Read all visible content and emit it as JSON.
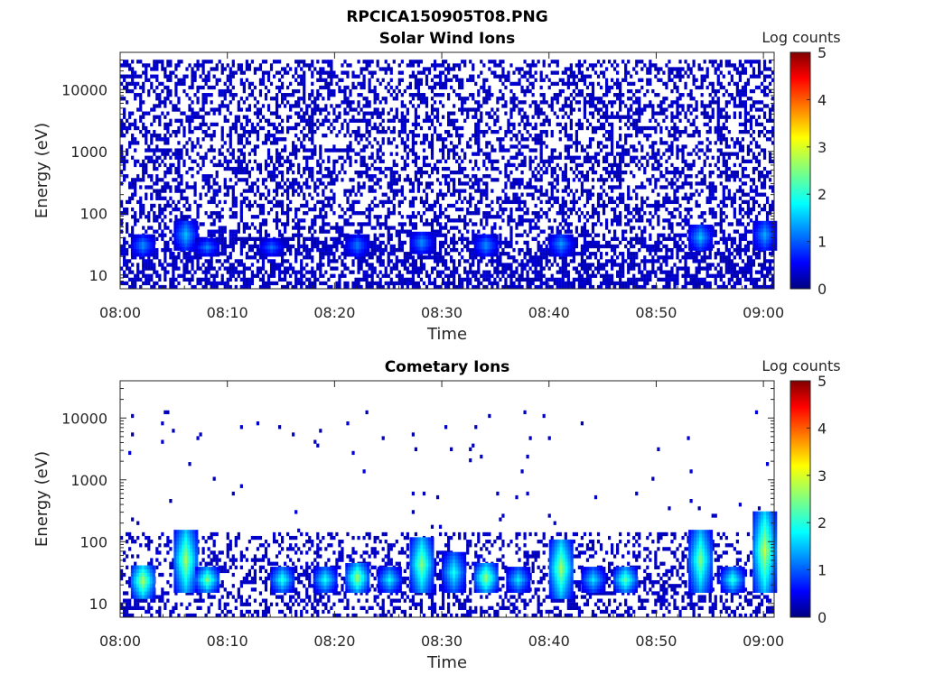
{
  "figure": {
    "title": "RPCICA150905T08.PNG"
  },
  "chart_data": [
    {
      "type": "heatmap",
      "title": "Solar Wind Ions",
      "xlabel": "Time",
      "ylabel": "Energy (eV)",
      "x_ticks": [
        "08:00",
        "08:10",
        "08:20",
        "08:30",
        "08:40",
        "08:50",
        "09:00"
      ],
      "x_range": [
        "08:00",
        "09:01"
      ],
      "y_scale": "log",
      "y_ticks": [
        "10",
        "100",
        "1000",
        "10000"
      ],
      "y_range": [
        6,
        40000
      ],
      "colorbar": {
        "label": "Log counts",
        "ticks": [
          "0",
          "1",
          "2",
          "3",
          "4",
          "5"
        ],
        "range": [
          0,
          5
        ],
        "colormap": "jet"
      },
      "background_noise": {
        "energy_range_eV": [
          6,
          30000
        ],
        "log_counts": 0.2,
        "density": "high"
      },
      "features": [
        {
          "time": "08:02",
          "energy_eV": [
            20,
            40
          ],
          "log_counts": 1.4
        },
        {
          "time": "08:06",
          "energy_eV": [
            25,
            70
          ],
          "log_counts": 1.6
        },
        {
          "time": "08:08",
          "energy_eV": [
            20,
            35
          ],
          "log_counts": 1.3
        },
        {
          "time": "08:14",
          "energy_eV": [
            20,
            35
          ],
          "log_counts": 1.2
        },
        {
          "time": "08:22",
          "energy_eV": [
            20,
            40
          ],
          "log_counts": 1.3
        },
        {
          "time": "08:28",
          "energy_eV": [
            22,
            45
          ],
          "log_counts": 1.4
        },
        {
          "time": "08:34",
          "energy_eV": [
            20,
            40
          ],
          "log_counts": 1.4
        },
        {
          "time": "08:41",
          "energy_eV": [
            20,
            45
          ],
          "log_counts": 1.4
        },
        {
          "time": "08:54",
          "energy_eV": [
            25,
            60
          ],
          "log_counts": 1.6
        },
        {
          "time": "09:00",
          "energy_eV": [
            25,
            70
          ],
          "log_counts": 1.5
        }
      ]
    },
    {
      "type": "heatmap",
      "title": "Cometary Ions",
      "xlabel": "Time",
      "ylabel": "Energy (eV)",
      "x_ticks": [
        "08:00",
        "08:10",
        "08:20",
        "08:30",
        "08:40",
        "08:50",
        "09:00"
      ],
      "x_range": [
        "08:00",
        "09:01"
      ],
      "y_scale": "log",
      "y_ticks": [
        "10",
        "100",
        "1000",
        "10000"
      ],
      "y_range": [
        6,
        40000
      ],
      "colorbar": {
        "label": "Log counts",
        "ticks": [
          "0",
          "1",
          "2",
          "3",
          "4",
          "5"
        ],
        "range": [
          0,
          5
        ],
        "colormap": "jet"
      },
      "background_noise": {
        "energy_range_eV": [
          6,
          150
        ],
        "log_counts": 0.2,
        "density": "medium",
        "sparse_high_energy": true
      },
      "features": [
        {
          "time": "08:02",
          "energy_eV": [
            12,
            40
          ],
          "log_counts": 2.8
        },
        {
          "time": "08:06",
          "energy_eV": [
            15,
            150
          ],
          "log_counts": 2.7
        },
        {
          "time": "08:08",
          "energy_eV": [
            15,
            35
          ],
          "log_counts": 2.5
        },
        {
          "time": "08:15",
          "energy_eV": [
            15,
            35
          ],
          "log_counts": 2.1
        },
        {
          "time": "08:19",
          "energy_eV": [
            15,
            35
          ],
          "log_counts": 2.0
        },
        {
          "time": "08:22",
          "energy_eV": [
            15,
            40
          ],
          "log_counts": 2.7
        },
        {
          "time": "08:25",
          "energy_eV": [
            15,
            35
          ],
          "log_counts": 1.9
        },
        {
          "time": "08:28",
          "energy_eV": [
            15,
            110
          ],
          "log_counts": 2.6
        },
        {
          "time": "08:31",
          "energy_eV": [
            15,
            60
          ],
          "log_counts": 2.0
        },
        {
          "time": "08:34",
          "energy_eV": [
            15,
            40
          ],
          "log_counts": 2.7
        },
        {
          "time": "08:37",
          "energy_eV": [
            15,
            35
          ],
          "log_counts": 1.8
        },
        {
          "time": "08:41",
          "energy_eV": [
            12,
            100
          ],
          "log_counts": 2.7
        },
        {
          "time": "08:44",
          "energy_eV": [
            15,
            35
          ],
          "log_counts": 1.8
        },
        {
          "time": "08:47",
          "energy_eV": [
            15,
            35
          ],
          "log_counts": 2.4
        },
        {
          "time": "08:54",
          "energy_eV": [
            15,
            150
          ],
          "log_counts": 2.5
        },
        {
          "time": "08:57",
          "energy_eV": [
            15,
            35
          ],
          "log_counts": 2.1
        },
        {
          "time": "09:00",
          "energy_eV": [
            15,
            300
          ],
          "log_counts": 2.9
        }
      ]
    }
  ]
}
